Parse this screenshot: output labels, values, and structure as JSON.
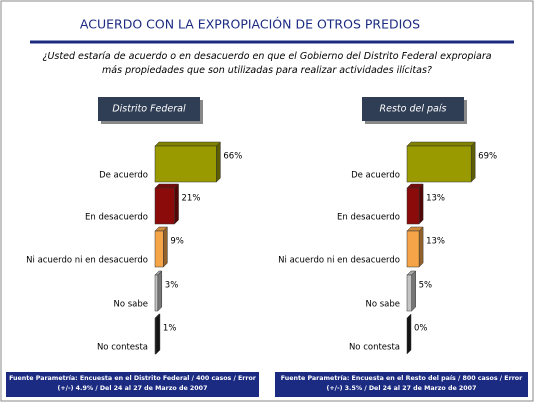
{
  "title": "ACUERDO CON LA EXPROPIACIÓN DE OTROS PREDIOS",
  "question": "¿Usted estaría de acuerdo o en desacuerdo en que el Gobierno del Distrito Federal expropiara más propiedades que son utilizadas para realizar actividades ilícitas?",
  "chart_data": [
    {
      "type": "bar",
      "orientation": "horizontal",
      "title": "Distrito Federal",
      "categories": [
        "De acuerdo",
        "En desacuerdo",
        "Ni acuerdo ni en desacuerdo",
        "No sabe",
        "No contesta"
      ],
      "values": [
        66,
        21,
        9,
        3,
        1
      ],
      "value_labels": [
        "66%",
        "21%",
        "9%",
        "3%",
        "1%"
      ],
      "colors": [
        "#999900",
        "#8b0a0a",
        "#f5a448",
        "#c4c4c4",
        "#222222"
      ],
      "source": "Fuente Parametría: Encuesta en el Distrito Federal / 400 casos / Error (+/-) 4.9% / Del 24 al 27 de Marzo de 2007"
    },
    {
      "type": "bar",
      "orientation": "horizontal",
      "title": "Resto del país",
      "categories": [
        "De acuerdo",
        "En desacuerdo",
        "Ni acuerdo ni en desacuerdo",
        "No sabe",
        "No contesta"
      ],
      "values": [
        69,
        13,
        13,
        5,
        0
      ],
      "value_labels": [
        "69%",
        "13%",
        "13%",
        "5%",
        "0%"
      ],
      "colors": [
        "#999900",
        "#8b0a0a",
        "#f5a448",
        "#c4c4c4",
        "#222222"
      ],
      "source": "Fuente Parametría: Encuesta en el Resto del país / 800 casos / Error (+/-) 3.5% / Del 24 al 27 de Marzo de 2007"
    }
  ]
}
